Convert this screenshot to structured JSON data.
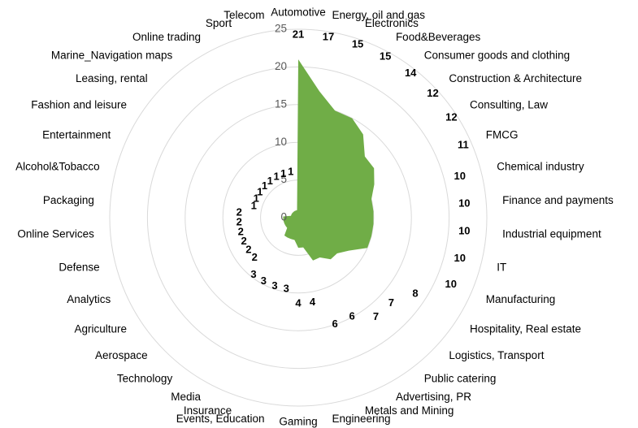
{
  "chart_data": {
    "type": "radar",
    "categories": [
      "Automotive",
      "Energy, oil and gas",
      "Electronics",
      "Food&Beverages",
      "Consumer goods and clothing",
      "Construction & Architecture",
      "Consulting, Law",
      "FMCG",
      "Chemical industry",
      "Finance and payments",
      "Industrial equipment",
      "IT",
      "Manufacturing",
      "Hospitality, Real estate",
      "Logistics, Transport",
      "Public catering",
      "Advertising, PR",
      "Metals and Mining",
      "Engineering",
      "Gaming",
      "Events, Education",
      "Insurance",
      "Media",
      "Technology",
      "Aerospace",
      "Agriculture",
      "Analytics",
      "Defense",
      "Online Services",
      "Packaging",
      "Alcohol&Tobacco",
      "Entertainment",
      "Fashion and leisure",
      "Leasing, rental",
      "Marine_Navigation maps",
      "Online trading",
      "Sport",
      "Telecom"
    ],
    "values": [
      21,
      17,
      15,
      15,
      14,
      12,
      12,
      11,
      10,
      10,
      10,
      10,
      10,
      8,
      7,
      7,
      6,
      6,
      4,
      4,
      3,
      3,
      3,
      3,
      2,
      2,
      2,
      2,
      2,
      2,
      1,
      1,
      1,
      1,
      1,
      1,
      1,
      1
    ],
    "color": "#70ad47",
    "ylim": [
      0,
      25
    ],
    "yticks": [
      0,
      5,
      10,
      15,
      20,
      25
    ],
    "grid": true
  }
}
